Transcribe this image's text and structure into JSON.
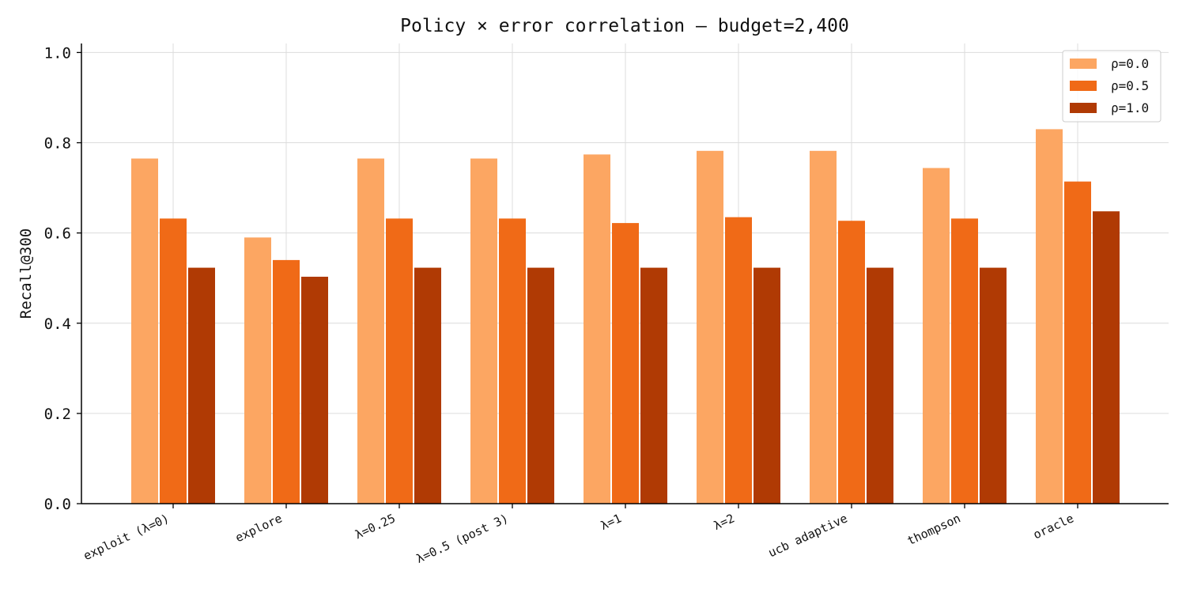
{
  "chart_data": {
    "type": "bar",
    "title": "Policy × error correlation — budget=2,400",
    "xlabel": "",
    "ylabel": "Recall@300",
    "ylim": [
      0,
      1.02
    ],
    "yticks": [
      "0.0",
      "0.2",
      "0.4",
      "0.6",
      "0.8",
      "1.0"
    ],
    "grid": true,
    "legend_position": "top-right",
    "categories": [
      "exploit (λ=0)",
      "explore",
      "λ=0.25",
      "λ=0.5 (post 3)",
      "λ=1",
      "λ=2",
      "ucb adaptive",
      "thompson",
      "oracle"
    ],
    "series": [
      {
        "name": "ρ=0.0",
        "color": "#fca662",
        "values": [
          0.765,
          0.59,
          0.765,
          0.765,
          0.774,
          0.782,
          0.782,
          0.744,
          0.83
        ]
      },
      {
        "name": "ρ=0.5",
        "color": "#f06a17",
        "values": [
          0.632,
          0.54,
          0.632,
          0.632,
          0.622,
          0.635,
          0.627,
          0.632,
          0.714
        ]
      },
      {
        "name": "ρ=1.0",
        "color": "#b03a04",
        "values": [
          0.523,
          0.503,
          0.523,
          0.523,
          0.523,
          0.523,
          0.523,
          0.523,
          0.648
        ]
      }
    ]
  }
}
